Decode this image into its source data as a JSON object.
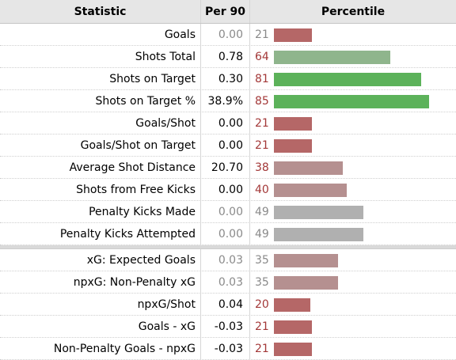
{
  "header": {
    "statistic": "Statistic",
    "per90": "Per 90",
    "percentile": "Percentile"
  },
  "groups": [
    [
      {
        "stat": "Goals",
        "per90": "0.00",
        "percentile": 21,
        "num_color": "#8a8a8a",
        "per_color": "#8a8a8a",
        "bar_color": "#b56767"
      },
      {
        "stat": "Shots Total",
        "per90": "0.78",
        "percentile": 64,
        "num_color": "#a33838",
        "per_color": "#000000",
        "bar_color": "#8fb58c"
      },
      {
        "stat": "Shots on Target",
        "per90": "0.30",
        "percentile": 81,
        "num_color": "#a33838",
        "per_color": "#000000",
        "bar_color": "#5cb25a"
      },
      {
        "stat": "Shots on Target %",
        "per90": "38.9%",
        "percentile": 85,
        "num_color": "#a33838",
        "per_color": "#000000",
        "bar_color": "#5cb25a"
      },
      {
        "stat": "Goals/Shot",
        "per90": "0.00",
        "percentile": 21,
        "num_color": "#a33838",
        "per_color": "#000000",
        "bar_color": "#b56767"
      },
      {
        "stat": "Goals/Shot on Target",
        "per90": "0.00",
        "percentile": 21,
        "num_color": "#a33838",
        "per_color": "#000000",
        "bar_color": "#b56767"
      },
      {
        "stat": "Average Shot Distance",
        "per90": "20.70",
        "percentile": 38,
        "num_color": "#a33838",
        "per_color": "#000000",
        "bar_color": "#b59090"
      },
      {
        "stat": "Shots from Free Kicks",
        "per90": "0.00",
        "percentile": 40,
        "num_color": "#a33838",
        "per_color": "#000000",
        "bar_color": "#b59090"
      },
      {
        "stat": "Penalty Kicks Made",
        "per90": "0.00",
        "percentile": 49,
        "num_color": "#8a8a8a",
        "per_color": "#8a8a8a",
        "bar_color": "#b0b0b0"
      },
      {
        "stat": "Penalty Kicks Attempted",
        "per90": "0.00",
        "percentile": 49,
        "num_color": "#8a8a8a",
        "per_color": "#8a8a8a",
        "bar_color": "#b0b0b0"
      }
    ],
    [
      {
        "stat": "xG: Expected Goals",
        "per90": "0.03",
        "percentile": 35,
        "num_color": "#8a8a8a",
        "per_color": "#8a8a8a",
        "bar_color": "#b59090"
      },
      {
        "stat": "npxG: Non-Penalty xG",
        "per90": "0.03",
        "percentile": 35,
        "num_color": "#8a8a8a",
        "per_color": "#8a8a8a",
        "bar_color": "#b59090"
      },
      {
        "stat": "npxG/Shot",
        "per90": "0.04",
        "percentile": 20,
        "num_color": "#a33838",
        "per_color": "#000000",
        "bar_color": "#b56767"
      },
      {
        "stat": "Goals - xG",
        "per90": "-0.03",
        "percentile": 21,
        "num_color": "#a33838",
        "per_color": "#000000",
        "bar_color": "#b56767"
      },
      {
        "stat": "Non-Penalty Goals - npxG",
        "per90": "-0.03",
        "percentile": 21,
        "num_color": "#a33838",
        "per_color": "#000000",
        "bar_color": "#b56767"
      }
    ]
  ]
}
